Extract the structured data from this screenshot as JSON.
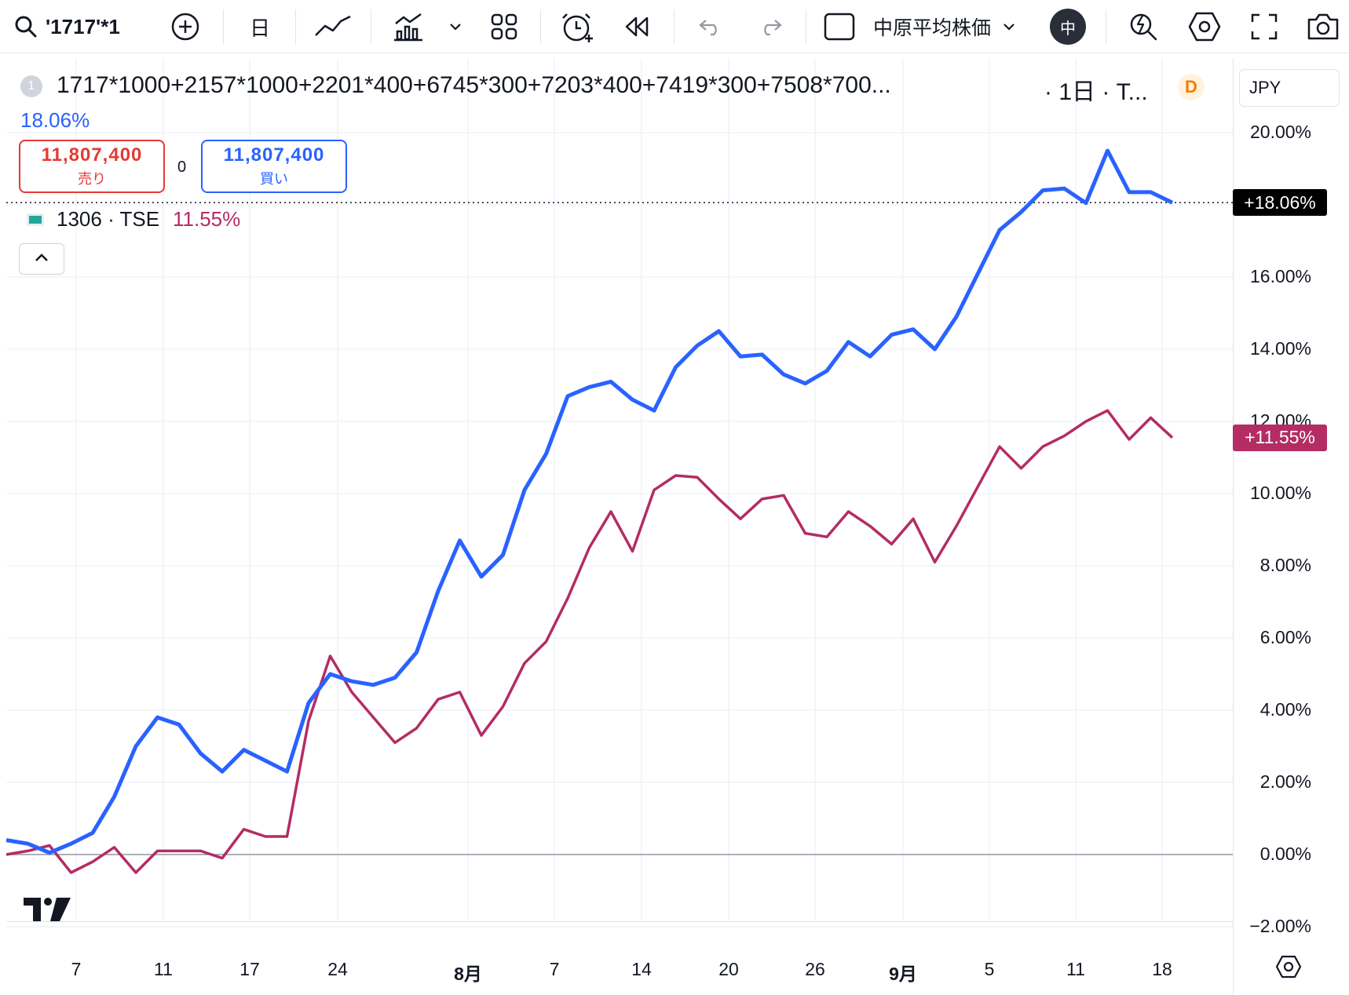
{
  "toolbar": {
    "symbol": "'1717'*1",
    "interval": "日",
    "index": "中原平均株価",
    "avatar_letter": "中"
  },
  "legend": {
    "index_badge": "1",
    "title": "1717*1000+2157*1000+2201*400+6745*300+7203*400+7419*300+7508*700...",
    "interval": "· 1日 · T...",
    "data_badge": "D",
    "change_pct": "18.06%",
    "sell": {
      "value": "11,807,400",
      "label": "売り"
    },
    "spread": "0",
    "buy": {
      "value": "11,807,400",
      "label": "買い"
    },
    "compare_symbol": "1306 · TSE",
    "compare_pct": "11.55%"
  },
  "price_scale": {
    "currency": "JPY",
    "ticks": [
      "20.00%",
      "18.00%",
      "16.00%",
      "14.00%",
      "12.00%",
      "10.00%",
      "8.00%",
      "6.00%",
      "4.00%",
      "2.00%",
      "0.00%",
      "−2.00%"
    ],
    "last_main": "+18.06%",
    "last_compare": "+11.55%"
  },
  "time_scale": {
    "ticks": [
      "7",
      "11",
      "17",
      "24",
      "8月",
      "7",
      "14",
      "20",
      "26",
      "9月",
      "5",
      "11",
      "18"
    ]
  },
  "chart_data": {
    "type": "line",
    "ylim": [
      -2.0,
      21.0
    ],
    "series": [
      {
        "name": "1717*1000+2157*1000+2201*400+6745*300+7203*400+7419*300+7508*700...",
        "color": "#2962ff",
        "values": [
          0.4,
          0.3,
          0.05,
          0.3,
          0.6,
          1.6,
          3.0,
          3.8,
          3.6,
          2.8,
          2.3,
          2.9,
          2.6,
          2.3,
          4.2,
          5.0,
          4.8,
          4.7,
          4.9,
          5.6,
          7.3,
          8.7,
          7.7,
          8.3,
          10.1,
          11.1,
          12.7,
          12.95,
          13.1,
          12.6,
          12.3,
          13.5,
          14.1,
          14.5,
          13.8,
          13.85,
          13.3,
          13.05,
          13.4,
          14.2,
          13.8,
          14.4,
          14.55,
          14.0,
          14.9,
          16.1,
          17.3,
          17.8,
          18.4,
          18.45,
          18.05,
          19.5,
          18.35,
          18.35,
          18.06
        ]
      },
      {
        "name": "1306 · TSE",
        "color": "#b42c64",
        "values": [
          0.0,
          0.1,
          0.25,
          -0.5,
          -0.2,
          0.2,
          -0.5,
          0.1,
          0.1,
          0.1,
          -0.1,
          0.7,
          0.5,
          0.5,
          3.7,
          5.5,
          4.5,
          3.8,
          3.1,
          3.5,
          4.3,
          4.5,
          3.3,
          4.1,
          5.3,
          5.9,
          7.1,
          8.5,
          9.5,
          8.4,
          10.1,
          10.5,
          10.45,
          9.85,
          9.3,
          9.85,
          9.95,
          8.9,
          8.8,
          9.5,
          9.1,
          8.6,
          9.3,
          8.1,
          9.1,
          10.2,
          11.3,
          10.7,
          11.3,
          11.6,
          12.0,
          12.3,
          11.5,
          12.1,
          11.55
        ]
      }
    ],
    "x_ticks": [
      "7",
      "11",
      "17",
      "24",
      "8月",
      "7",
      "14",
      "20",
      "26",
      "9月",
      "5",
      "11",
      "18"
    ],
    "grid": true,
    "legend": "top-left"
  }
}
